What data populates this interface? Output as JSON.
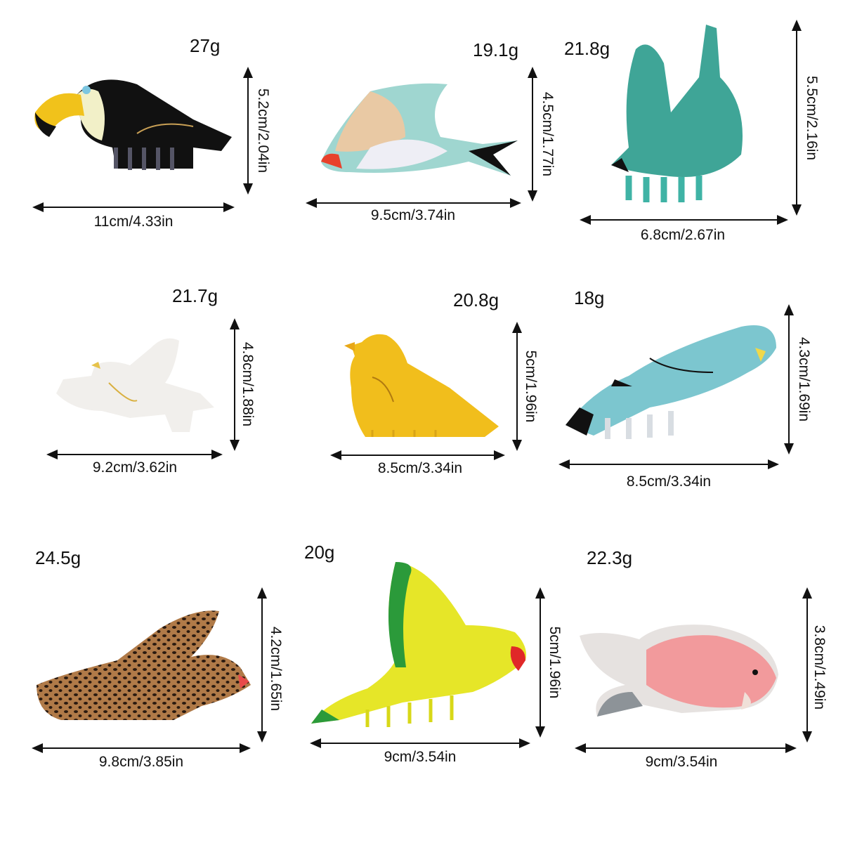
{
  "items": [
    {
      "name": "toucan",
      "weight": "27g",
      "height": "5.2cm/2.04in",
      "width": "11cm/4.33in",
      "color": "#111111"
    },
    {
      "name": "swallow",
      "weight": "19.1g",
      "height": "4.5cm/1.77in",
      "width": "9.5cm/3.74in",
      "color": "#9fd6d0"
    },
    {
      "name": "green-swallow",
      "weight": "21.8g",
      "height": "5.5cm/2.16in",
      "width": "6.8cm/2.67in",
      "color": "#3fa597"
    },
    {
      "name": "dove",
      "weight": "21.7g",
      "height": "4.8cm/1.88in",
      "width": "9.2cm/3.62in",
      "color": "#f1efec"
    },
    {
      "name": "yellow-bird",
      "weight": "20.8g",
      "height": "5cm/1.96in",
      "width": "8.5cm/3.34in",
      "color": "#f1be1c"
    },
    {
      "name": "parakeet",
      "weight": "18g",
      "height": "4.3cm/1.69in",
      "width": "8.5cm/3.34in",
      "color": "#7cc6cf"
    },
    {
      "name": "leopard-bird",
      "weight": "24.5g",
      "height": "4.2cm/1.65in",
      "width": "9.8cm/3.85in",
      "color": "#b07a48"
    },
    {
      "name": "yellow-parrot",
      "weight": "20g",
      "height": "5cm/1.96in",
      "width": "9cm/3.54in",
      "color": "#e6e628"
    },
    {
      "name": "pink-lovebird",
      "weight": "22.3g",
      "height": "3.8cm/1.49in",
      "width": "9cm/3.54in",
      "color": "#f29a9c"
    }
  ]
}
